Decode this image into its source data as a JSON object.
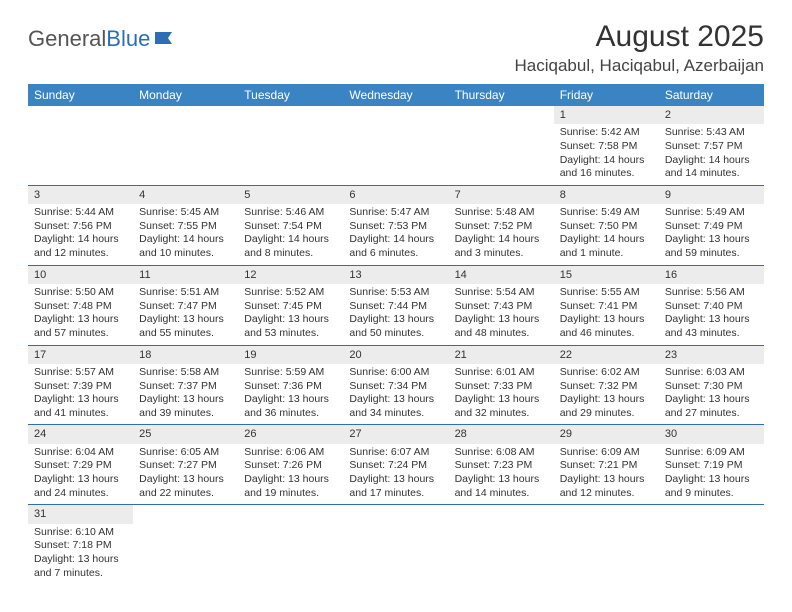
{
  "logo": {
    "text1": "General",
    "text2": "Blue"
  },
  "title": "August 2025",
  "location": "Haciqabul, Haciqabul, Azerbaijan",
  "headers": [
    "Sunday",
    "Monday",
    "Tuesday",
    "Wednesday",
    "Thursday",
    "Friday",
    "Saturday"
  ],
  "colors": {
    "header_bg": "#3a84c4",
    "border": "#2d6fb5",
    "daynum_bg": "#ececec"
  },
  "weeks": [
    [
      null,
      null,
      null,
      null,
      null,
      {
        "n": "1",
        "sr": "5:42 AM",
        "ss": "7:58 PM",
        "dl": "14 hours and 16 minutes."
      },
      {
        "n": "2",
        "sr": "5:43 AM",
        "ss": "7:57 PM",
        "dl": "14 hours and 14 minutes."
      }
    ],
    [
      {
        "n": "3",
        "sr": "5:44 AM",
        "ss": "7:56 PM",
        "dl": "14 hours and 12 minutes."
      },
      {
        "n": "4",
        "sr": "5:45 AM",
        "ss": "7:55 PM",
        "dl": "14 hours and 10 minutes."
      },
      {
        "n": "5",
        "sr": "5:46 AM",
        "ss": "7:54 PM",
        "dl": "14 hours and 8 minutes."
      },
      {
        "n": "6",
        "sr": "5:47 AM",
        "ss": "7:53 PM",
        "dl": "14 hours and 6 minutes."
      },
      {
        "n": "7",
        "sr": "5:48 AM",
        "ss": "7:52 PM",
        "dl": "14 hours and 3 minutes."
      },
      {
        "n": "8",
        "sr": "5:49 AM",
        "ss": "7:50 PM",
        "dl": "14 hours and 1 minute."
      },
      {
        "n": "9",
        "sr": "5:49 AM",
        "ss": "7:49 PM",
        "dl": "13 hours and 59 minutes."
      }
    ],
    [
      {
        "n": "10",
        "sr": "5:50 AM",
        "ss": "7:48 PM",
        "dl": "13 hours and 57 minutes."
      },
      {
        "n": "11",
        "sr": "5:51 AM",
        "ss": "7:47 PM",
        "dl": "13 hours and 55 minutes."
      },
      {
        "n": "12",
        "sr": "5:52 AM",
        "ss": "7:45 PM",
        "dl": "13 hours and 53 minutes."
      },
      {
        "n": "13",
        "sr": "5:53 AM",
        "ss": "7:44 PM",
        "dl": "13 hours and 50 minutes."
      },
      {
        "n": "14",
        "sr": "5:54 AM",
        "ss": "7:43 PM",
        "dl": "13 hours and 48 minutes."
      },
      {
        "n": "15",
        "sr": "5:55 AM",
        "ss": "7:41 PM",
        "dl": "13 hours and 46 minutes."
      },
      {
        "n": "16",
        "sr": "5:56 AM",
        "ss": "7:40 PM",
        "dl": "13 hours and 43 minutes."
      }
    ],
    [
      {
        "n": "17",
        "sr": "5:57 AM",
        "ss": "7:39 PM",
        "dl": "13 hours and 41 minutes."
      },
      {
        "n": "18",
        "sr": "5:58 AM",
        "ss": "7:37 PM",
        "dl": "13 hours and 39 minutes."
      },
      {
        "n": "19",
        "sr": "5:59 AM",
        "ss": "7:36 PM",
        "dl": "13 hours and 36 minutes."
      },
      {
        "n": "20",
        "sr": "6:00 AM",
        "ss": "7:34 PM",
        "dl": "13 hours and 34 minutes."
      },
      {
        "n": "21",
        "sr": "6:01 AM",
        "ss": "7:33 PM",
        "dl": "13 hours and 32 minutes."
      },
      {
        "n": "22",
        "sr": "6:02 AM",
        "ss": "7:32 PM",
        "dl": "13 hours and 29 minutes."
      },
      {
        "n": "23",
        "sr": "6:03 AM",
        "ss": "7:30 PM",
        "dl": "13 hours and 27 minutes."
      }
    ],
    [
      {
        "n": "24",
        "sr": "6:04 AM",
        "ss": "7:29 PM",
        "dl": "13 hours and 24 minutes."
      },
      {
        "n": "25",
        "sr": "6:05 AM",
        "ss": "7:27 PM",
        "dl": "13 hours and 22 minutes."
      },
      {
        "n": "26",
        "sr": "6:06 AM",
        "ss": "7:26 PM",
        "dl": "13 hours and 19 minutes."
      },
      {
        "n": "27",
        "sr": "6:07 AM",
        "ss": "7:24 PM",
        "dl": "13 hours and 17 minutes."
      },
      {
        "n": "28",
        "sr": "6:08 AM",
        "ss": "7:23 PM",
        "dl": "13 hours and 14 minutes."
      },
      {
        "n": "29",
        "sr": "6:09 AM",
        "ss": "7:21 PM",
        "dl": "13 hours and 12 minutes."
      },
      {
        "n": "30",
        "sr": "6:09 AM",
        "ss": "7:19 PM",
        "dl": "13 hours and 9 minutes."
      }
    ],
    [
      {
        "n": "31",
        "sr": "6:10 AM",
        "ss": "7:18 PM",
        "dl": "13 hours and 7 minutes."
      },
      null,
      null,
      null,
      null,
      null,
      null
    ]
  ]
}
